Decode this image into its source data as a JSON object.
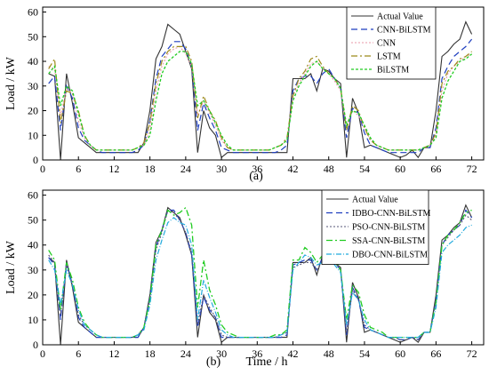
{
  "chart_data": [
    {
      "type": "line",
      "panel_label": "(a)",
      "xlabel": "",
      "ylabel": "Load / kW",
      "xlim": [
        0,
        74
      ],
      "ylim": [
        0,
        62
      ],
      "xticks": [
        0,
        6,
        12,
        18,
        24,
        30,
        36,
        42,
        48,
        54,
        60,
        66,
        72
      ],
      "yticks": [
        0,
        10,
        20,
        30,
        40,
        50,
        60
      ],
      "legend_position": "top-right",
      "grid": false,
      "x": [
        1,
        2,
        3,
        4,
        5,
        6,
        7,
        8,
        9,
        10,
        11,
        12,
        13,
        14,
        15,
        16,
        17,
        18,
        19,
        20,
        21,
        22,
        23,
        24,
        25,
        26,
        27,
        28,
        29,
        30,
        31,
        32,
        33,
        34,
        35,
        36,
        37,
        38,
        39,
        40,
        41,
        42,
        43,
        44,
        45,
        46,
        47,
        48,
        49,
        50,
        51,
        52,
        53,
        54,
        55,
        56,
        57,
        58,
        59,
        60,
        61,
        62,
        63,
        64,
        65,
        66,
        67,
        68,
        69,
        70,
        71,
        72
      ],
      "series": [
        {
          "name": "Actual Value",
          "color": "#333333",
          "dash": "",
          "width": 1.1,
          "values": [
            35,
            34,
            0,
            35,
            23,
            9,
            7,
            5,
            3,
            3,
            3,
            3,
            3,
            3,
            3,
            3,
            7,
            20,
            41,
            46,
            55,
            53,
            51,
            44,
            37,
            3,
            20,
            13,
            10,
            1,
            3,
            3,
            3,
            3,
            3,
            3,
            3,
            3,
            3,
            3,
            3,
            33,
            33,
            33,
            35,
            28,
            37,
            36,
            33,
            31,
            1,
            25,
            19,
            5,
            6,
            5,
            4,
            3,
            2,
            1,
            2,
            4,
            1,
            5,
            5,
            20,
            42,
            44,
            47,
            49,
            56,
            51
          ]
        },
        {
          "name": "CNN-BiLSTM",
          "color": "#1f3fbf",
          "dash": "7,4",
          "width": 1.2,
          "values": [
            31,
            34,
            12,
            30,
            25,
            13,
            8,
            6,
            4,
            3,
            3,
            3,
            3,
            3,
            3,
            4,
            6,
            16,
            33,
            42,
            45,
            48,
            48,
            45,
            38,
            12,
            23,
            17,
            12,
            5,
            4,
            3,
            3,
            3,
            3,
            3,
            3,
            3,
            3,
            4,
            6,
            28,
            33,
            34,
            34,
            31,
            35,
            37,
            33,
            29,
            9,
            21,
            19,
            11,
            6,
            5,
            4,
            3,
            3,
            3,
            3,
            3,
            3,
            5,
            5,
            13,
            33,
            38,
            42,
            44,
            46,
            49
          ]
        },
        {
          "name": "CNN",
          "color": "#e89aaa",
          "dash": "2,2",
          "width": 1.1,
          "values": [
            38,
            37,
            18,
            29,
            27,
            16,
            9,
            6,
            4,
            4,
            4,
            4,
            4,
            4,
            4,
            5,
            6,
            12,
            28,
            38,
            43,
            45,
            46,
            43,
            38,
            18,
            24,
            19,
            14,
            8,
            5,
            4,
            4,
            4,
            4,
            4,
            4,
            4,
            5,
            6,
            8,
            26,
            31,
            35,
            39,
            40,
            37,
            35,
            32,
            28,
            14,
            20,
            18,
            13,
            8,
            6,
            5,
            4,
            4,
            4,
            4,
            4,
            4,
            5,
            6,
            10,
            28,
            35,
            38,
            40,
            42,
            43
          ]
        },
        {
          "name": "LSTM",
          "color": "#9c8a1a",
          "dash": "7,3,2,3",
          "width": 1.2,
          "values": [
            37,
            41,
            15,
            28,
            27,
            20,
            10,
            6,
            4,
            4,
            4,
            4,
            4,
            4,
            4,
            5,
            7,
            15,
            31,
            40,
            44,
            46,
            46,
            46,
            40,
            17,
            26,
            20,
            16,
            9,
            5,
            4,
            4,
            4,
            4,
            4,
            4,
            4,
            5,
            6,
            9,
            26,
            33,
            36,
            41,
            42,
            38,
            35,
            33,
            29,
            12,
            22,
            20,
            13,
            8,
            6,
            5,
            4,
            4,
            4,
            4,
            4,
            4,
            5,
            6,
            11,
            31,
            36,
            38,
            41,
            42,
            44
          ]
        },
        {
          "name": "BiLSTM",
          "color": "#22cc22",
          "dash": "3,2",
          "width": 1.3,
          "values": [
            35,
            38,
            22,
            30,
            28,
            19,
            10,
            6,
            4,
            4,
            4,
            4,
            4,
            4,
            4,
            5,
            6,
            10,
            24,
            35,
            40,
            42,
            44,
            44,
            39,
            22,
            24,
            20,
            15,
            10,
            6,
            4,
            4,
            4,
            4,
            4,
            4,
            4,
            5,
            6,
            8,
            24,
            30,
            34,
            38,
            40,
            37,
            35,
            33,
            29,
            14,
            20,
            19,
            14,
            9,
            6,
            5,
            4,
            4,
            4,
            4,
            4,
            4,
            5,
            6,
            9,
            25,
            32,
            36,
            40,
            41,
            43
          ]
        }
      ]
    },
    {
      "type": "line",
      "panel_label": "(b)",
      "xlabel": "Time / h",
      "ylabel": "Load / kW",
      "xlim": [
        0,
        74
      ],
      "ylim": [
        0,
        62
      ],
      "xticks": [
        0,
        6,
        12,
        18,
        24,
        30,
        36,
        42,
        48,
        54,
        60,
        66,
        72
      ],
      "yticks": [
        0,
        10,
        20,
        30,
        40,
        50,
        60
      ],
      "legend_position": "top-right",
      "grid": false,
      "x": [
        1,
        2,
        3,
        4,
        5,
        6,
        7,
        8,
        9,
        10,
        11,
        12,
        13,
        14,
        15,
        16,
        17,
        18,
        19,
        20,
        21,
        22,
        23,
        24,
        25,
        26,
        27,
        28,
        29,
        30,
        31,
        32,
        33,
        34,
        35,
        36,
        37,
        38,
        39,
        40,
        41,
        42,
        43,
        44,
        45,
        46,
        47,
        48,
        49,
        50,
        51,
        52,
        53,
        54,
        55,
        56,
        57,
        58,
        59,
        60,
        61,
        62,
        63,
        64,
        65,
        66,
        67,
        68,
        69,
        70,
        71,
        72
      ],
      "series": [
        {
          "name": "Actual Value",
          "color": "#333333",
          "dash": "",
          "width": 1.1,
          "values": [
            35,
            33,
            0,
            34,
            23,
            9,
            7,
            5,
            3,
            3,
            3,
            3,
            3,
            3,
            3,
            3,
            7,
            20,
            41,
            46,
            55,
            53,
            51,
            44,
            36,
            3,
            20,
            13,
            10,
            1,
            3,
            3,
            3,
            3,
            3,
            3,
            3,
            3,
            3,
            3,
            3,
            33,
            33,
            33,
            35,
            28,
            36,
            36,
            33,
            31,
            1,
            25,
            19,
            5,
            6,
            5,
            4,
            3,
            2,
            1,
            2,
            3,
            1,
            5,
            5,
            20,
            42,
            44,
            47,
            49,
            56,
            51
          ]
        },
        {
          "name": "IDBO-CNN-BiLSTM",
          "color": "#1f3fbf",
          "dash": "7,4",
          "width": 1.2,
          "values": [
            35,
            32,
            10,
            33,
            24,
            11,
            7,
            5,
            3,
            3,
            3,
            3,
            3,
            3,
            3,
            3,
            7,
            19,
            39,
            46,
            54,
            54,
            50,
            45,
            36,
            7,
            19,
            14,
            11,
            3,
            3,
            3,
            3,
            3,
            3,
            3,
            3,
            3,
            3,
            3,
            4,
            32,
            33,
            34,
            34,
            30,
            35,
            36,
            33,
            30,
            4,
            23,
            18,
            7,
            6,
            5,
            4,
            3,
            3,
            2,
            2,
            3,
            2,
            5,
            5,
            18,
            40,
            44,
            46,
            48,
            54,
            51
          ]
        },
        {
          "name": "PSO-CNN-BiLSTM",
          "color": "#555577",
          "dash": "2,2",
          "width": 1.1,
          "values": [
            36,
            33,
            12,
            32,
            24,
            12,
            8,
            6,
            4,
            3,
            3,
            3,
            3,
            3,
            3,
            4,
            7,
            18,
            38,
            45,
            54,
            53,
            50,
            45,
            37,
            8,
            20,
            15,
            11,
            4,
            3,
            3,
            3,
            3,
            3,
            3,
            3,
            3,
            3,
            4,
            5,
            31,
            32,
            33,
            33,
            30,
            34,
            35,
            33,
            30,
            5,
            22,
            18,
            8,
            6,
            5,
            4,
            3,
            3,
            2,
            2,
            3,
            2,
            5,
            5,
            18,
            40,
            43,
            46,
            48,
            52,
            50
          ]
        },
        {
          "name": "SSA-CNN-BiLSTM",
          "color": "#22cc22",
          "dash": "7,3,2,3",
          "width": 1.3,
          "values": [
            38,
            34,
            14,
            33,
            26,
            15,
            9,
            6,
            4,
            3,
            3,
            3,
            3,
            3,
            3,
            4,
            7,
            18,
            40,
            46,
            54,
            52,
            53,
            55,
            48,
            15,
            34,
            22,
            16,
            8,
            5,
            4,
            3,
            3,
            3,
            3,
            3,
            3,
            4,
            4,
            6,
            34,
            34,
            39,
            37,
            33,
            36,
            35,
            34,
            30,
            10,
            24,
            21,
            12,
            7,
            6,
            5,
            3,
            3,
            3,
            3,
            3,
            3,
            5,
            5,
            17,
            40,
            44,
            46,
            49,
            53,
            54
          ]
        },
        {
          "name": "DBO-CNN-BiLSTM",
          "color": "#22aadd",
          "dash": "6,2,1,2",
          "width": 1.2,
          "values": [
            34,
            30,
            16,
            30,
            24,
            14,
            8,
            6,
            4,
            3,
            3,
            3,
            3,
            3,
            3,
            4,
            6,
            16,
            34,
            42,
            49,
            51,
            49,
            48,
            40,
            10,
            26,
            19,
            13,
            6,
            4,
            3,
            3,
            3,
            3,
            3,
            3,
            3,
            3,
            4,
            5,
            30,
            33,
            36,
            35,
            32,
            33,
            34,
            32,
            29,
            8,
            21,
            18,
            10,
            6,
            5,
            4,
            3,
            3,
            3,
            3,
            3,
            3,
            5,
            5,
            15,
            37,
            40,
            42,
            44,
            47,
            48
          ]
        }
      ]
    }
  ]
}
